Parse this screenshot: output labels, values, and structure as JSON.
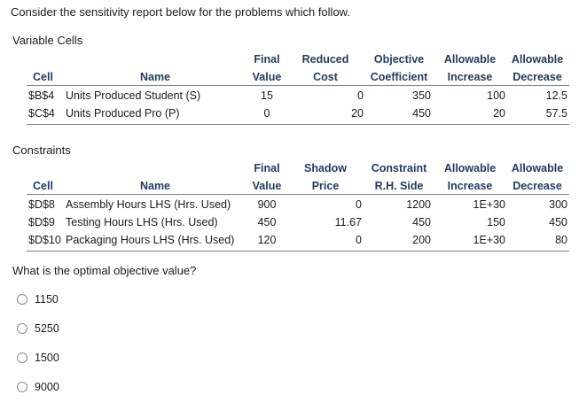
{
  "intro": "Consider the sensitivity report below for the problems which follow.",
  "variable_cells": {
    "title": "Variable Cells",
    "headers": {
      "top": [
        "Final",
        "Reduced",
        "Objective",
        "Allowable",
        "Allowable"
      ],
      "bottom": [
        "Cell",
        "Name",
        "Value",
        "Cost",
        "Coefficient",
        "Increase",
        "Decrease"
      ]
    },
    "rows": [
      {
        "cell": "$B$4",
        "name": "Units Produced Student (S)",
        "final": "15",
        "reduced": "0",
        "objective": "350",
        "inc": "100",
        "dec": "12.5"
      },
      {
        "cell": "$C$4",
        "name": "Units Produced Pro (P)",
        "final": "0",
        "reduced": "20",
        "objective": "450",
        "inc": "20",
        "dec": "57.5"
      }
    ]
  },
  "constraints": {
    "title": "Constraints",
    "headers": {
      "top": [
        "Final",
        "Shadow",
        "Constraint",
        "Allowable",
        "Allowable"
      ],
      "bottom": [
        "Cell",
        "Name",
        "Value",
        "Price",
        "R.H. Side",
        "Increase",
        "Decrease"
      ]
    },
    "rows": [
      {
        "cell": "$D$8",
        "name": "Assembly Hours LHS (Hrs. Used)",
        "final": "900",
        "shadow": "0",
        "rhs": "1200",
        "inc": "1E+30",
        "dec": "300"
      },
      {
        "cell": "$D$9",
        "name": "Testing Hours LHS (Hrs. Used)",
        "final": "450",
        "shadow": "11.67",
        "rhs": "450",
        "inc": "150",
        "dec": "450"
      },
      {
        "cell": "$D$10",
        "name": "Packaging Hours LHS (Hrs. Used)",
        "final": "120",
        "shadow": "0",
        "rhs": "200",
        "inc": "1E+30",
        "dec": "80"
      }
    ]
  },
  "question": "What is the optimal objective value?",
  "options": [
    "1150",
    "5250",
    "1500",
    "9000"
  ]
}
